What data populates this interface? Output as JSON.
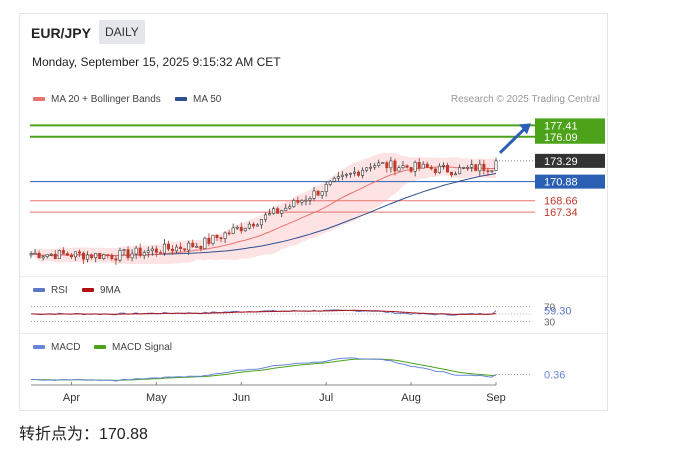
{
  "header": {
    "symbol": "EUR/JPY",
    "interval": "DAILY",
    "datetime": "Monday, September 15, 2025 9:15:32 AM CET",
    "legend_ma20": "MA 20 + Bollinger Bands",
    "legend_ma50": "MA 50",
    "research": "Research © 2025 Trading Central"
  },
  "colors": {
    "ma20": "#e8736f",
    "ma50": "#2f4f8f",
    "bands": "#fde3e3",
    "up_candle": "#3a3a3a",
    "down_candle": "#c0392b",
    "target_line": "#4ca31a",
    "pivot_line": "#2b5fb4",
    "support_line": "#e8736f",
    "rsi": "#5b78c8",
    "rsi_ma": "#b01010",
    "macd": "#6a86d8",
    "macd_signal": "#4ca31a",
    "arrow": "#2b5fb4"
  },
  "chart_data": [
    {
      "type": "candlestick",
      "name": "price",
      "x_labels": [
        "Apr",
        "May",
        "Jun",
        "Jul",
        "Aug",
        "Sep"
      ],
      "ylim": [
        160.5,
        178.5
      ],
      "ohlc_summary": [
        {
          "month": "Apr",
          "open": 162.5,
          "close": 162.3,
          "high": 164.0,
          "low": 160.8
        },
        {
          "month": "May",
          "open": 162.3,
          "close": 163.6,
          "high": 164.6,
          "low": 161.9
        },
        {
          "month": "Jun",
          "open": 163.6,
          "close": 167.8,
          "high": 168.9,
          "low": 162.4
        },
        {
          "month": "Jul",
          "open": 167.8,
          "close": 172.9,
          "high": 173.9,
          "low": 167.4
        },
        {
          "month": "Aug",
          "open": 172.9,
          "close": 172.2,
          "high": 173.6,
          "low": 171.1
        },
        {
          "month": "Sep",
          "open": 172.2,
          "close": 173.29,
          "high": 173.9,
          "low": 171.9
        }
      ],
      "levels": [
        {
          "label": "177.41",
          "value": 177.41,
          "kind": "target",
          "color": "#4ca31a"
        },
        {
          "label": "176.09",
          "value": 176.09,
          "kind": "target",
          "color": "#4ca31a"
        },
        {
          "label": "173.29",
          "value": 173.29,
          "kind": "last",
          "color": "#333333"
        },
        {
          "label": "170.88",
          "value": 170.88,
          "kind": "pivot",
          "color": "#2b5fb4"
        },
        {
          "label": "168.66",
          "value": 168.66,
          "kind": "support",
          "color": "#e8736f"
        },
        {
          "label": "167.34",
          "value": 167.34,
          "kind": "support",
          "color": "#e8736f"
        }
      ],
      "legend": [
        "MA 20 + Bollinger Bands",
        "MA 50"
      ]
    },
    {
      "type": "line",
      "name": "RSI",
      "legend": [
        "RSI",
        "9MA"
      ],
      "ylim": [
        20,
        80
      ],
      "levels": [
        {
          "label": "70",
          "value": 70
        },
        {
          "label": "30",
          "value": 30
        }
      ],
      "last_value_label": "59.30",
      "last_value": 59.3
    },
    {
      "type": "line",
      "name": "MACD",
      "legend": [
        "MACD",
        "MACD Signal"
      ],
      "last_value_label": "0.36",
      "last_value": 0.36
    }
  ],
  "rsi_legend": {
    "rsi": "RSI",
    "ma": "9MA"
  },
  "macd_legend": {
    "macd": "MACD",
    "signal": "MACD Signal"
  },
  "footer": {
    "pivot_text": "转折点为：170.88"
  }
}
